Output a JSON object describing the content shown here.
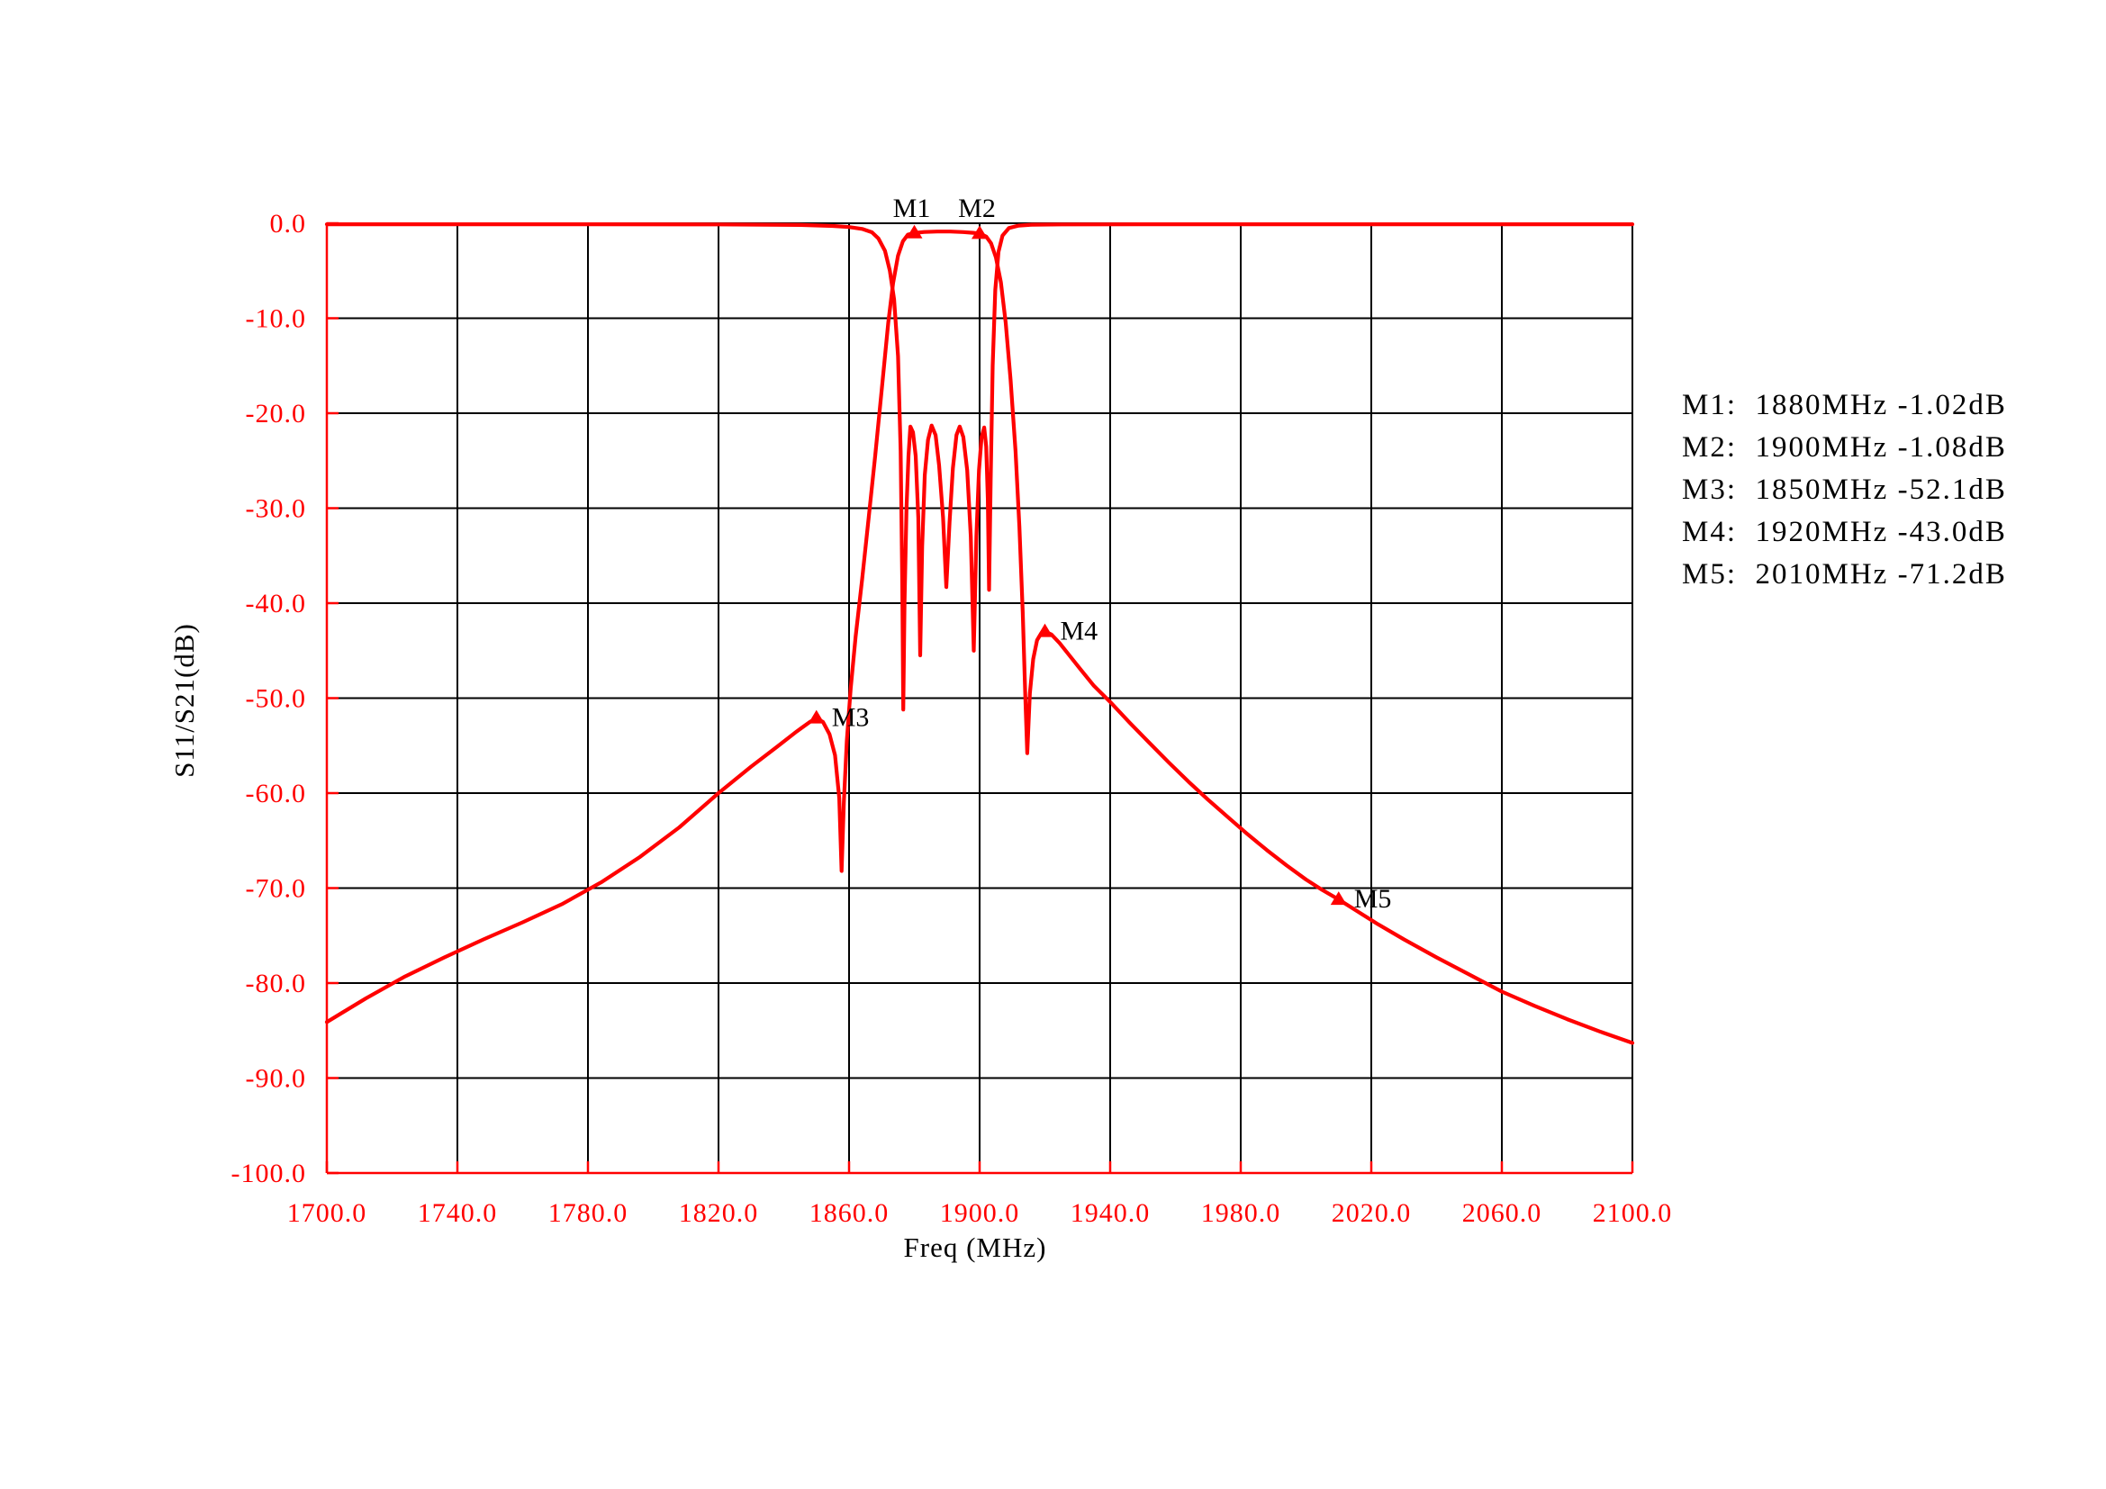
{
  "colors": {
    "background": "#ffffff",
    "curve": "#ff0000",
    "axis": "#ff0000",
    "tick_label": "#ff0000",
    "grid": "#000000",
    "text": "#000000"
  },
  "chart_data": {
    "type": "line",
    "title": "",
    "xlabel": "Freq (MHz)",
    "ylabel": "S11/S21(dB)",
    "xlim": [
      1700,
      2100
    ],
    "ylim": [
      -100,
      0
    ],
    "grid": true,
    "x_ticks": [
      1700,
      1740,
      1780,
      1820,
      1860,
      1900,
      1940,
      1980,
      2020,
      2060,
      2100
    ],
    "x_tick_labels": [
      "1700.0",
      "1740.0",
      "1780.0",
      "1820.0",
      "1860.0",
      "1900.0",
      "1940.0",
      "1980.0",
      "2020.0",
      "2060.0",
      "2100.0"
    ],
    "y_ticks": [
      0,
      -10,
      -20,
      -30,
      -40,
      -50,
      -60,
      -70,
      -80,
      -90,
      -100
    ],
    "y_tick_labels": [
      "0.0",
      "-10.0",
      "-20.0",
      "-30.0",
      "-40.0",
      "-50.0",
      "-60.0",
      "-70.0",
      "-80.0",
      "-90.0",
      "-100.0"
    ],
    "series": [
      {
        "name": "S21",
        "points": [
          [
            1700,
            -84.1
          ],
          [
            1712,
            -81.6
          ],
          [
            1724,
            -79.3
          ],
          [
            1736,
            -77.3
          ],
          [
            1748,
            -75.4
          ],
          [
            1760,
            -73.6
          ],
          [
            1772,
            -71.7
          ],
          [
            1784,
            -69.4
          ],
          [
            1796,
            -66.7
          ],
          [
            1808,
            -63.6
          ],
          [
            1820,
            -60.0
          ],
          [
            1830,
            -57.2
          ],
          [
            1838,
            -55.1
          ],
          [
            1844,
            -53.5
          ],
          [
            1848,
            -52.5
          ],
          [
            1850,
            -52.1
          ],
          [
            1852,
            -52.5
          ],
          [
            1854,
            -53.8
          ],
          [
            1855.7,
            -56.0
          ],
          [
            1857,
            -60.5
          ],
          [
            1857.7,
            -68.2
          ],
          [
            1858.4,
            -61.0
          ],
          [
            1859.3,
            -54.5
          ],
          [
            1860.5,
            -49.0
          ],
          [
            1862,
            -43.5
          ],
          [
            1864,
            -37.5
          ],
          [
            1866,
            -31.0
          ],
          [
            1868,
            -24.5
          ],
          [
            1870,
            -17.5
          ],
          [
            1872,
            -10.5
          ],
          [
            1873.5,
            -6.3
          ],
          [
            1875,
            -3.4
          ],
          [
            1876.5,
            -1.9
          ],
          [
            1878,
            -1.2
          ],
          [
            1880,
            -1.02
          ],
          [
            1883,
            -0.92
          ],
          [
            1887,
            -0.87
          ],
          [
            1891,
            -0.87
          ],
          [
            1895,
            -0.93
          ],
          [
            1898,
            -1.0
          ],
          [
            1900,
            -1.08
          ],
          [
            1902,
            -1.4
          ],
          [
            1903.5,
            -2.1
          ],
          [
            1905,
            -3.6
          ],
          [
            1906.5,
            -6.2
          ],
          [
            1908,
            -10.5
          ],
          [
            1909.5,
            -16.5
          ],
          [
            1911,
            -24.0
          ],
          [
            1912.2,
            -32.0
          ],
          [
            1913.2,
            -41.0
          ],
          [
            1914,
            -50.0
          ],
          [
            1914.6,
            -55.8
          ],
          [
            1915.4,
            -49.5
          ],
          [
            1916.4,
            -45.9
          ],
          [
            1917.6,
            -43.9
          ],
          [
            1919,
            -43.1
          ],
          [
            1920,
            -43.0
          ],
          [
            1922,
            -43.3
          ],
          [
            1924.5,
            -44.2
          ],
          [
            1927.5,
            -45.5
          ],
          [
            1931,
            -47.0
          ],
          [
            1935,
            -48.7
          ],
          [
            1940,
            -50.4
          ],
          [
            1946,
            -52.6
          ],
          [
            1952,
            -54.7
          ],
          [
            1958,
            -56.8
          ],
          [
            1964,
            -58.8
          ],
          [
            1970,
            -60.7
          ],
          [
            1976,
            -62.5
          ],
          [
            1982,
            -64.3
          ],
          [
            1988,
            -66.0
          ],
          [
            1994,
            -67.6
          ],
          [
            2000,
            -69.1
          ],
          [
            2005,
            -70.2
          ],
          [
            2010,
            -71.2
          ],
          [
            2016,
            -72.5
          ],
          [
            2022,
            -73.8
          ],
          [
            2030,
            -75.4
          ],
          [
            2040,
            -77.3
          ],
          [
            2050,
            -79.1
          ],
          [
            2060,
            -80.9
          ],
          [
            2070,
            -82.4
          ],
          [
            2080,
            -83.8
          ],
          [
            2090,
            -85.1
          ],
          [
            2100,
            -86.3
          ]
        ]
      },
      {
        "name": "S11",
        "points": [
          [
            1700,
            -0.1
          ],
          [
            1780,
            -0.1
          ],
          [
            1820,
            -0.12
          ],
          [
            1845,
            -0.18
          ],
          [
            1855,
            -0.28
          ],
          [
            1860,
            -0.4
          ],
          [
            1864,
            -0.6
          ],
          [
            1867,
            -0.95
          ],
          [
            1869,
            -1.6
          ],
          [
            1871,
            -2.9
          ],
          [
            1872.5,
            -5.0
          ],
          [
            1873.8,
            -8.0
          ],
          [
            1875,
            -14.0
          ],
          [
            1875.8,
            -24.0
          ],
          [
            1876.3,
            -38.0
          ],
          [
            1876.6,
            -51.2
          ],
          [
            1877,
            -40.0
          ],
          [
            1877.6,
            -30.0
          ],
          [
            1878.2,
            -24.5
          ],
          [
            1878.8,
            -21.4
          ],
          [
            1879.6,
            -22.0
          ],
          [
            1880.4,
            -24.5
          ],
          [
            1881.2,
            -31.0
          ],
          [
            1881.8,
            -45.5
          ],
          [
            1882.4,
            -34.0
          ],
          [
            1883.2,
            -26.5
          ],
          [
            1884.2,
            -22.8
          ],
          [
            1885.3,
            -21.3
          ],
          [
            1886.5,
            -22.3
          ],
          [
            1887.6,
            -25.5
          ],
          [
            1888.8,
            -31.0
          ],
          [
            1889.8,
            -38.3
          ],
          [
            1890.8,
            -31.5
          ],
          [
            1891.8,
            -25.8
          ],
          [
            1892.9,
            -22.3
          ],
          [
            1893.9,
            -21.4
          ],
          [
            1895,
            -22.5
          ],
          [
            1896.2,
            -26.0
          ],
          [
            1897.3,
            -33.0
          ],
          [
            1898.2,
            -45.0
          ],
          [
            1899,
            -33.0
          ],
          [
            1899.8,
            -26.0
          ],
          [
            1900.6,
            -22.5
          ],
          [
            1901.4,
            -21.5
          ],
          [
            1902,
            -23.5
          ],
          [
            1902.5,
            -29.0
          ],
          [
            1902.9,
            -38.6
          ],
          [
            1903.4,
            -27.0
          ],
          [
            1904,
            -15.0
          ],
          [
            1904.8,
            -7.0
          ],
          [
            1905.8,
            -3.0
          ],
          [
            1907,
            -1.3
          ],
          [
            1909,
            -0.5
          ],
          [
            1912,
            -0.25
          ],
          [
            1916,
            -0.15
          ],
          [
            1925,
            -0.12
          ],
          [
            1950,
            -0.1
          ],
          [
            2000,
            -0.1
          ],
          [
            2100,
            -0.1
          ]
        ]
      }
    ],
    "markers": [
      {
        "id": "M1",
        "freq_mhz": 1880,
        "db": -1.02,
        "text": "M1:  1880MHz -1.02dB",
        "label_pos": "above"
      },
      {
        "id": "M2",
        "freq_mhz": 1900,
        "db": -1.08,
        "text": "M2:  1900MHz -1.08dB",
        "label_pos": "above"
      },
      {
        "id": "M3",
        "freq_mhz": 1850,
        "db": -52.1,
        "text": "M3:  1850MHz -52.1dB",
        "label_pos": "right"
      },
      {
        "id": "M4",
        "freq_mhz": 1920,
        "db": -43.0,
        "text": "M4:  1920MHz -43.0dB",
        "label_pos": "right"
      },
      {
        "id": "M5",
        "freq_mhz": 2010,
        "db": -71.2,
        "text": "M5:  2010MHz -71.2dB",
        "label_pos": "right"
      }
    ],
    "legend_position": "right-middle-outside"
  }
}
